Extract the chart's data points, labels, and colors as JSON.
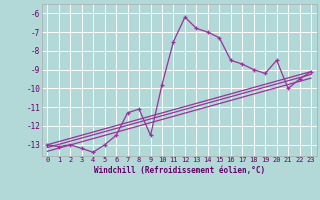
{
  "background_color": "#b2d8d8",
  "grid_color": "#ffffff",
  "line_color": "#993399",
  "xlabel": "Windchill (Refroidissement éolien,°C)",
  "xlim": [
    -0.5,
    23.5
  ],
  "ylim": [
    -13.6,
    -5.5
  ],
  "yticks": [
    -13,
    -12,
    -11,
    -10,
    -9,
    -8,
    -7,
    -6
  ],
  "xticks": [
    0,
    1,
    2,
    3,
    4,
    5,
    6,
    7,
    8,
    9,
    10,
    11,
    12,
    13,
    14,
    15,
    16,
    17,
    18,
    19,
    20,
    21,
    22,
    23
  ],
  "series": [
    [
      0,
      -13.0
    ],
    [
      1,
      -13.1
    ],
    [
      2,
      -13.0
    ],
    [
      3,
      -13.2
    ],
    [
      4,
      -13.4
    ],
    [
      5,
      -13.0
    ],
    [
      6,
      -12.5
    ],
    [
      7,
      -11.3
    ],
    [
      8,
      -11.1
    ],
    [
      9,
      -12.5
    ],
    [
      10,
      -9.8
    ],
    [
      11,
      -7.5
    ],
    [
      12,
      -6.2
    ],
    [
      13,
      -6.8
    ],
    [
      14,
      -7.0
    ],
    [
      15,
      -7.3
    ],
    [
      16,
      -8.5
    ],
    [
      17,
      -8.7
    ],
    [
      18,
      -9.0
    ],
    [
      19,
      -9.2
    ],
    [
      20,
      -8.5
    ],
    [
      21,
      -10.0
    ],
    [
      22,
      -9.5
    ],
    [
      23,
      -9.1
    ]
  ],
  "regression_lines": [
    {
      "x": [
        0,
        23
      ],
      "y": [
        -13.0,
        -9.1
      ]
    },
    {
      "x": [
        0,
        23
      ],
      "y": [
        -13.15,
        -9.25
      ]
    },
    {
      "x": [
        0,
        23
      ],
      "y": [
        -13.35,
        -9.45
      ]
    }
  ]
}
